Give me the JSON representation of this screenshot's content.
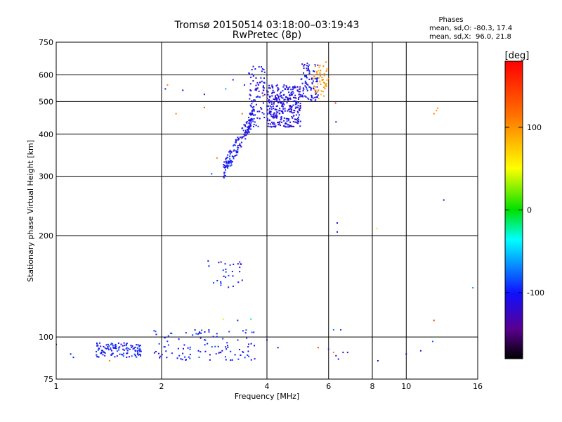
{
  "chart_data": {
    "type": "scatter",
    "title": "Tromsø 20150514 03:18:00–03:19:43",
    "subtitle": "RwPretec (8p)",
    "xlabel": "Frequency [MHz]",
    "ylabel": "Stationary phase Virtual Height [km]",
    "x_scale": "log2",
    "y_scale": "log",
    "xlim": [
      1,
      16
    ],
    "ylim": [
      75,
      750
    ],
    "x_ticks": [
      1,
      2,
      4,
      6,
      8,
      10,
      16
    ],
    "x_tick_labels": [
      "1",
      "2",
      "4",
      "6",
      "8",
      "10",
      "16"
    ],
    "y_ticks": [
      75,
      100,
      200,
      300,
      400,
      500,
      600,
      750
    ],
    "y_tick_labels": [
      "75",
      "100",
      "200",
      "300",
      "400",
      "500",
      "600",
      "750"
    ],
    "grid": true,
    "phase_stats": {
      "title": "Phases",
      "line_o": "mean, sd,O: -80.3, 17.4",
      "line_x": "mean, sd,X:  96.0, 21.8"
    },
    "colorbar": {
      "label": "[deg]",
      "range": [
        -180,
        180
      ],
      "ticks": [
        100,
        0,
        -100
      ],
      "tick_labels": [
        "100",
        "0",
        "-100"
      ],
      "colormap": "rainbow"
    },
    "clusters": [
      {
        "name": "F-trace O lower",
        "x": [
          3.0,
          3.65
        ],
        "y": [
          310,
          450
        ],
        "phase": -105,
        "count": 160
      },
      {
        "name": "F-trace O upper",
        "x": [
          3.55,
          3.95
        ],
        "y": [
          420,
          640
        ],
        "phase": -110,
        "count": 90
      },
      {
        "name": "F-trace cusp",
        "x": [
          4.0,
          5.0
        ],
        "y": [
          420,
          560
        ],
        "phase": -110,
        "count": 320
      },
      {
        "name": "F-trace X",
        "x": [
          5.0,
          5.6
        ],
        "y": [
          500,
          650
        ],
        "phase": -105,
        "count": 90
      },
      {
        "name": "F-trace X high phase",
        "x": [
          5.4,
          5.95
        ],
        "y": [
          510,
          640
        ],
        "phase": 95,
        "count": 50
      },
      {
        "name": "E low",
        "x": [
          1.3,
          1.75
        ],
        "y": [
          87,
          96
        ],
        "phase": -100,
        "count": 120
      },
      {
        "name": "E mid",
        "x": [
          1.9,
          3.7
        ],
        "y": [
          85,
          105
        ],
        "phase": -100,
        "count": 110
      },
      {
        "name": "Es mid",
        "x": [
          2.7,
          3.4
        ],
        "y": [
          140,
          170
        ],
        "phase": -105,
        "count": 30
      }
    ],
    "points": [
      {
        "x": 1.1,
        "y": 89,
        "phase": -100
      },
      {
        "x": 1.12,
        "y": 87,
        "phase": -100
      },
      {
        "x": 1.0,
        "y": 95,
        "phase": -100
      },
      {
        "x": 1.42,
        "y": 85,
        "phase": 110
      },
      {
        "x": 2.08,
        "y": 560,
        "phase": 110
      },
      {
        "x": 2.2,
        "y": 460,
        "phase": 110
      },
      {
        "x": 2.3,
        "y": 540,
        "phase": -110
      },
      {
        "x": 2.05,
        "y": 545,
        "phase": -110
      },
      {
        "x": 2.65,
        "y": 480,
        "phase": 140
      },
      {
        "x": 2.65,
        "y": 525,
        "phase": -110
      },
      {
        "x": 2.78,
        "y": 305,
        "phase": -80
      },
      {
        "x": 2.88,
        "y": 340,
        "phase": 120
      },
      {
        "x": 3.2,
        "y": 580,
        "phase": -110
      },
      {
        "x": 3.05,
        "y": 545,
        "phase": -60
      },
      {
        "x": 3.45,
        "y": 560,
        "phase": -110
      },
      {
        "x": 6.28,
        "y": 495,
        "phase": 150
      },
      {
        "x": 6.3,
        "y": 435,
        "phase": -110
      },
      {
        "x": 6.35,
        "y": 218,
        "phase": -110
      },
      {
        "x": 6.35,
        "y": 205,
        "phase": -110
      },
      {
        "x": 8.25,
        "y": 210,
        "phase": 60
      },
      {
        "x": 12.2,
        "y": 470,
        "phase": 100
      },
      {
        "x": 12.0,
        "y": 460,
        "phase": 110
      },
      {
        "x": 12.3,
        "y": 478,
        "phase": 100
      },
      {
        "x": 12.8,
        "y": 255,
        "phase": -110
      },
      {
        "x": 12.0,
        "y": 112,
        "phase": 150
      },
      {
        "x": 15.5,
        "y": 140,
        "phase": -70
      },
      {
        "x": 11.9,
        "y": 97,
        "phase": -80
      },
      {
        "x": 3.0,
        "y": 113,
        "phase": 40
      },
      {
        "x": 3.6,
        "y": 113,
        "phase": -20
      },
      {
        "x": 3.3,
        "y": 112,
        "phase": -100
      },
      {
        "x": 6.5,
        "y": 105,
        "phase": -90
      },
      {
        "x": 6.2,
        "y": 105,
        "phase": -70
      },
      {
        "x": 6.0,
        "y": 92,
        "phase": -100
      },
      {
        "x": 6.3,
        "y": 88,
        "phase": -110
      },
      {
        "x": 6.4,
        "y": 86,
        "phase": -100
      },
      {
        "x": 6.6,
        "y": 90,
        "phase": -110
      },
      {
        "x": 6.8,
        "y": 90,
        "phase": -120
      },
      {
        "x": 6.2,
        "y": 90,
        "phase": 110
      },
      {
        "x": 5.6,
        "y": 93,
        "phase": 150
      },
      {
        "x": 8.3,
        "y": 85,
        "phase": -110
      },
      {
        "x": 10.0,
        "y": 89,
        "phase": -110
      },
      {
        "x": 11.0,
        "y": 91,
        "phase": -110
      },
      {
        "x": 4.3,
        "y": 93,
        "phase": -110
      },
      {
        "x": 4.0,
        "y": 98,
        "phase": -110
      },
      {
        "x": 5.75,
        "y": 580,
        "phase": 100
      },
      {
        "x": 6.0,
        "y": 585,
        "phase": 110
      },
      {
        "x": 5.9,
        "y": 655,
        "phase": 100
      },
      {
        "x": 3.9,
        "y": 520,
        "phase": 150
      },
      {
        "x": 3.4,
        "y": 460,
        "phase": 120
      }
    ]
  }
}
